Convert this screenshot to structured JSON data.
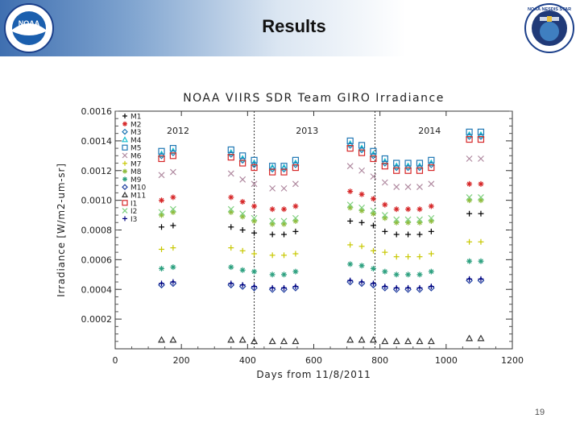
{
  "slide": {
    "title": "Results",
    "page_number": "19"
  },
  "logos": {
    "left": "NOAA",
    "right": "NOAA NESDIS STAR"
  },
  "chart_data": {
    "type": "scatter",
    "title": "NOAA VIIRS SDR Team GIRO Irradiance",
    "xlabel": "Days from 11/8/2011",
    "ylabel": "Irradiance [W/m2-um-sr]",
    "xlim": [
      0,
      1200
    ],
    "ylim": [
      0,
      0.0016
    ],
    "x_ticks": [
      "0",
      "200",
      "400",
      "600",
      "800",
      "1000",
      "1200"
    ],
    "y_ticks": [
      "0.0002",
      "0.0004",
      "0.0006",
      "0.0008",
      "0.0010",
      "0.0012",
      "0.0014",
      "0.0016"
    ],
    "year_labels": [
      {
        "label": "2012",
        "x": 190
      },
      {
        "label": "2013",
        "x": 580
      },
      {
        "label": "2014",
        "x": 950
      }
    ],
    "year_boundaries": [
      420,
      785
    ],
    "x": [
      140,
      175,
      350,
      385,
      420,
      475,
      510,
      545,
      710,
      745,
      780,
      815,
      850,
      885,
      920,
      955,
      1070,
      1105
    ],
    "series": [
      {
        "name": "M1",
        "symbol": "plus",
        "color": "#000000",
        "values": [
          0.00082,
          0.00083,
          0.00082,
          0.0008,
          0.00078,
          0.00077,
          0.00077,
          0.00079,
          0.00086,
          0.00085,
          0.00083,
          0.00079,
          0.00077,
          0.00077,
          0.00077,
          0.00079,
          0.00091,
          0.00091
        ]
      },
      {
        "name": "M2",
        "symbol": "asterisk",
        "color": "#d62728",
        "values": [
          0.001,
          0.00102,
          0.00102,
          0.00099,
          0.00096,
          0.00094,
          0.00094,
          0.00096,
          0.00106,
          0.00104,
          0.00101,
          0.00097,
          0.00094,
          0.00094,
          0.00094,
          0.00096,
          0.00111,
          0.00111
        ]
      },
      {
        "name": "M3",
        "symbol": "diamond",
        "color": "#1f77b4",
        "values": [
          0.0013,
          0.00132,
          0.00131,
          0.00127,
          0.00124,
          0.00121,
          0.00121,
          0.00124,
          0.00137,
          0.00134,
          0.0013,
          0.00125,
          0.00122,
          0.00122,
          0.00122,
          0.00124,
          0.00143,
          0.00143
        ]
      },
      {
        "name": "M4",
        "symbol": "triangle",
        "color": "#17becf",
        "values": [
          0.00131,
          0.00133,
          0.00132,
          0.00128,
          0.00125,
          0.00122,
          0.00122,
          0.00125,
          0.00138,
          0.00135,
          0.00131,
          0.00126,
          0.00123,
          0.00123,
          0.00123,
          0.00125,
          0.00144,
          0.00144
        ]
      },
      {
        "name": "M5",
        "symbol": "square",
        "color": "#1f77b4",
        "values": [
          0.00133,
          0.00135,
          0.00134,
          0.0013,
          0.00127,
          0.00123,
          0.00123,
          0.00127,
          0.0014,
          0.00137,
          0.00133,
          0.00128,
          0.00125,
          0.00125,
          0.00125,
          0.00127,
          0.00146,
          0.00146
        ]
      },
      {
        "name": "M6",
        "symbol": "cross",
        "color": "#b08aa0",
        "values": [
          0.00117,
          0.00119,
          0.00118,
          0.00114,
          0.00111,
          0.00108,
          0.00108,
          0.00111,
          0.00123,
          0.0012,
          0.00116,
          0.00112,
          0.00109,
          0.00109,
          0.00109,
          0.00111,
          0.00128,
          0.00128
        ]
      },
      {
        "name": "M7",
        "symbol": "plus",
        "color": "#c8c800",
        "values": [
          0.00067,
          0.00068,
          0.00068,
          0.00066,
          0.00064,
          0.00063,
          0.00063,
          0.00064,
          0.0007,
          0.00069,
          0.00066,
          0.00065,
          0.00062,
          0.00062,
          0.00062,
          0.00064,
          0.00072,
          0.00072
        ]
      },
      {
        "name": "M8",
        "symbol": "asterisk",
        "color": "#8fbc3f",
        "values": [
          0.0009,
          0.00092,
          0.00092,
          0.00089,
          0.00086,
          0.00084,
          0.00084,
          0.00086,
          0.00095,
          0.00093,
          0.00091,
          0.00088,
          0.00085,
          0.00085,
          0.00085,
          0.00086,
          0.001,
          0.001
        ]
      },
      {
        "name": "M9",
        "symbol": "asterisk",
        "color": "#2ca07f",
        "values": [
          0.00054,
          0.00055,
          0.00055,
          0.00053,
          0.00052,
          0.0005,
          0.0005,
          0.00052,
          0.00057,
          0.00056,
          0.00054,
          0.00052,
          0.0005,
          0.0005,
          0.0005,
          0.00052,
          0.00059,
          0.00059
        ]
      },
      {
        "name": "M10",
        "symbol": "diamond",
        "color": "#1f3fa0",
        "values": [
          0.00043,
          0.00044,
          0.00043,
          0.00042,
          0.00041,
          0.0004,
          0.0004,
          0.00041,
          0.00045,
          0.00044,
          0.00043,
          0.00041,
          0.0004,
          0.0004,
          0.0004,
          0.00041,
          0.00046,
          0.00046
        ]
      },
      {
        "name": "M11",
        "symbol": "triangle",
        "color": "#333333",
        "values": [
          6e-05,
          6e-05,
          6e-05,
          6e-05,
          5e-05,
          5e-05,
          5e-05,
          5e-05,
          6e-05,
          6e-05,
          6e-05,
          5e-05,
          5e-05,
          5e-05,
          5e-05,
          5e-05,
          7e-05,
          7e-05
        ]
      },
      {
        "name": "I1",
        "symbol": "square",
        "color": "#d62728",
        "values": [
          0.00128,
          0.0013,
          0.00129,
          0.00125,
          0.00122,
          0.00119,
          0.00119,
          0.00122,
          0.00135,
          0.00132,
          0.00128,
          0.00123,
          0.0012,
          0.0012,
          0.0012,
          0.00122,
          0.00141,
          0.00141
        ]
      },
      {
        "name": "I2",
        "symbol": "cross",
        "color": "#7fd07f",
        "values": [
          0.00092,
          0.00094,
          0.00094,
          0.00091,
          0.00088,
          0.00086,
          0.00086,
          0.00088,
          0.00097,
          0.00095,
          0.00093,
          0.0009,
          0.00087,
          0.00087,
          0.00087,
          0.00088,
          0.00102,
          0.00102
        ]
      },
      {
        "name": "I3",
        "symbol": "plus",
        "color": "#000080",
        "values": [
          0.00044,
          0.00045,
          0.00044,
          0.00043,
          0.00042,
          0.00041,
          0.00041,
          0.00042,
          0.00046,
          0.00045,
          0.00044,
          0.00042,
          0.00041,
          0.00041,
          0.00041,
          0.00042,
          0.00047,
          0.00047
        ]
      }
    ]
  }
}
